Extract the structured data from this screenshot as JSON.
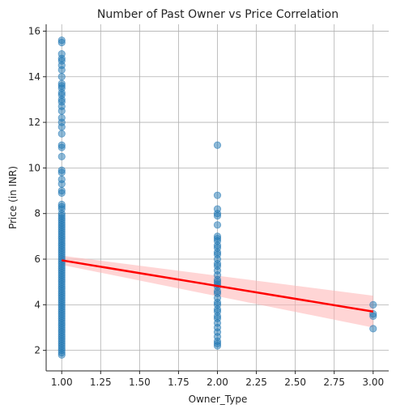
{
  "chart_data": {
    "type": "scatter",
    "title": "Number of Past Owner vs Price Correlation",
    "xlabel": "Owner_Type",
    "ylabel": "Price (in INR)",
    "xlim": [
      0.9,
      3.1
    ],
    "ylim": [
      1.1,
      16.3
    ],
    "xticks": [
      1.0,
      1.25,
      1.5,
      1.75,
      2.0,
      2.25,
      2.5,
      2.75,
      3.0
    ],
    "xtick_labels": [
      "1.00",
      "1.25",
      "1.50",
      "1.75",
      "2.00",
      "2.25",
      "2.50",
      "2.75",
      "3.00"
    ],
    "yticks": [
      2,
      4,
      6,
      8,
      10,
      12,
      14,
      16
    ],
    "ytick_labels": [
      "2",
      "4",
      "6",
      "8",
      "10",
      "12",
      "14",
      "16"
    ],
    "grid": true,
    "colors": {
      "points": "#1f77b4",
      "regression": "#ff0000",
      "band": "#ffb3b3"
    },
    "series": [
      {
        "x_value": 1.0,
        "values": [
          1.8,
          1.9,
          2.0,
          2.1,
          2.2,
          2.3,
          2.4,
          2.5,
          2.6,
          2.7,
          2.8,
          2.9,
          3.0,
          3.1,
          3.2,
          3.3,
          3.4,
          3.5,
          3.6,
          3.7,
          3.8,
          3.9,
          4.0,
          4.1,
          4.2,
          4.3,
          4.4,
          4.5,
          4.6,
          4.7,
          4.8,
          4.9,
          5.0,
          5.1,
          5.2,
          5.3,
          5.4,
          5.5,
          5.6,
          5.7,
          5.8,
          5.9,
          6.0,
          6.1,
          6.2,
          6.3,
          6.4,
          6.5,
          6.6,
          6.7,
          6.8,
          6.9,
          7.0,
          7.1,
          7.2,
          7.3,
          7.4,
          7.5,
          7.6,
          7.7,
          7.8,
          7.9,
          8.0,
          8.2,
          8.3,
          8.4,
          8.9,
          9.0,
          9.3,
          9.5,
          9.8,
          9.9,
          10.5,
          10.9,
          11.0,
          11.5,
          11.8,
          12.0,
          12.2,
          12.5,
          12.7,
          12.9,
          13.0,
          13.2,
          13.3,
          13.5,
          13.6,
          13.7,
          14.0,
          14.3,
          14.5,
          14.7,
          14.8,
          15.0,
          15.5,
          15.6
        ]
      },
      {
        "x_value": 2.0,
        "values": [
          2.2,
          2.3,
          2.4,
          2.6,
          2.8,
          3.0,
          3.2,
          3.4,
          3.5,
          3.7,
          3.8,
          4.0,
          4.1,
          4.3,
          4.5,
          4.6,
          4.8,
          4.9,
          5.0,
          5.1,
          5.3,
          5.5,
          5.7,
          5.8,
          6.0,
          6.2,
          6.3,
          6.5,
          6.6,
          6.8,
          6.9,
          7.0,
          7.5,
          7.9,
          8.0,
          8.2,
          8.8,
          11.0
        ]
      },
      {
        "x_value": 3.0,
        "values": [
          2.95,
          3.5,
          3.6,
          4.0
        ]
      }
    ],
    "regression": {
      "x": [
        1.0,
        3.0
      ],
      "y": [
        5.95,
        3.7
      ],
      "ci_lower": [
        5.75,
        3.0
      ],
      "ci_upper": [
        6.15,
        4.4
      ]
    }
  }
}
